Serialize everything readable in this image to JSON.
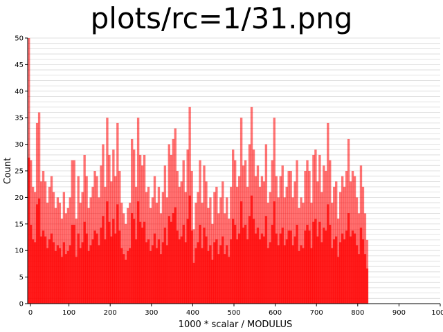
{
  "chart_data": {
    "type": "bar",
    "title": "plots/rc=1/31.png",
    "xlabel": "1000 * scalar / MODULUS",
    "ylabel": "Count",
    "xlim": [
      0,
      1000
    ],
    "ylim": [
      0,
      50
    ],
    "x_ticks": [
      "0",
      "100",
      "200",
      "300",
      "400",
      "500",
      "600",
      "700",
      "800",
      "900",
      "1000"
    ],
    "y_ticks": [
      "0",
      "5",
      "10",
      "15",
      "20",
      "25",
      "30",
      "35",
      "40",
      "45",
      "50"
    ],
    "grid": "horizontal lines every 1 count",
    "bar_color": "#ff0000",
    "bin_width": 5,
    "series": [
      {
        "values": [
          50,
          27,
          22,
          21,
          34,
          36,
          23,
          25,
          23,
          19,
          22,
          24,
          21,
          18,
          20,
          19,
          16,
          21,
          17,
          18,
          20,
          27,
          27,
          16,
          24,
          19,
          21,
          28,
          24,
          18,
          20,
          22,
          25,
          24,
          20,
          26,
          30,
          22,
          35,
          28,
          23,
          29,
          24,
          34,
          25,
          19,
          17,
          15,
          18,
          19,
          31,
          29,
          22,
          35,
          28,
          26,
          28,
          21,
          22,
          18,
          20,
          24,
          19,
          22,
          17,
          21,
          26,
          20,
          30,
          28,
          31,
          33,
          25,
          22,
          23,
          27,
          21,
          29,
          37,
          25,
          14,
          19,
          21,
          27,
          19,
          26,
          23,
          18,
          20,
          15,
          21,
          22,
          17,
          20,
          23,
          17,
          20,
          16,
          22,
          29,
          27,
          22,
          24,
          35,
          26,
          27,
          22,
          30,
          37,
          29,
          24,
          26,
          22,
          24,
          23,
          30,
          19,
          21,
          27,
          35,
          24,
          20,
          24,
          26,
          20,
          22,
          25,
          25,
          20,
          23,
          27,
          18,
          20,
          19,
          25,
          27,
          25,
          19,
          28,
          29,
          23,
          28,
          21,
          26,
          25,
          34,
          27,
          19,
          22,
          23,
          16,
          21,
          24,
          22,
          25,
          31,
          23,
          25,
          24,
          20,
          17,
          26,
          22,
          17,
          12
        ]
      }
    ]
  }
}
